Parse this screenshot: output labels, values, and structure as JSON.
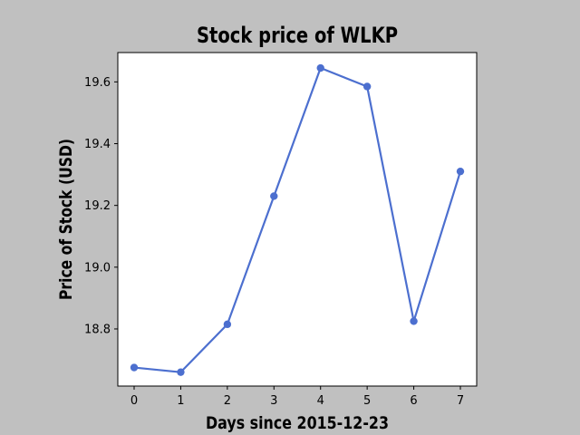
{
  "chart_data": {
    "type": "line",
    "title": "Stock price of WLKP",
    "xlabel": "Days since 2015-12-23",
    "ylabel": "Price of Stock (USD)",
    "x": [
      0,
      1,
      2,
      3,
      4,
      5,
      6,
      7
    ],
    "series": [
      {
        "values": [
          18.675,
          18.66,
          18.815,
          19.23,
          19.645,
          19.585,
          18.825,
          19.31
        ],
        "color": "#4c6fcf"
      }
    ],
    "xlim": [
      -0.35,
      7.35
    ],
    "ylim": [
      18.615,
      19.695
    ],
    "x_ticks": [
      0,
      1,
      2,
      3,
      4,
      5,
      6,
      7
    ],
    "x_tick_labels": [
      "0",
      "1",
      "2",
      "3",
      "4",
      "5",
      "6",
      "7"
    ],
    "y_ticks": [
      18.8,
      19.0,
      19.2,
      19.4,
      19.6
    ],
    "y_tick_labels": [
      "18.8",
      "19.0",
      "19.2",
      "19.4",
      "19.6"
    ],
    "grid": false,
    "legend": "none",
    "background_color": "#c0c0c0",
    "plot_background_color": "#ffffff"
  }
}
